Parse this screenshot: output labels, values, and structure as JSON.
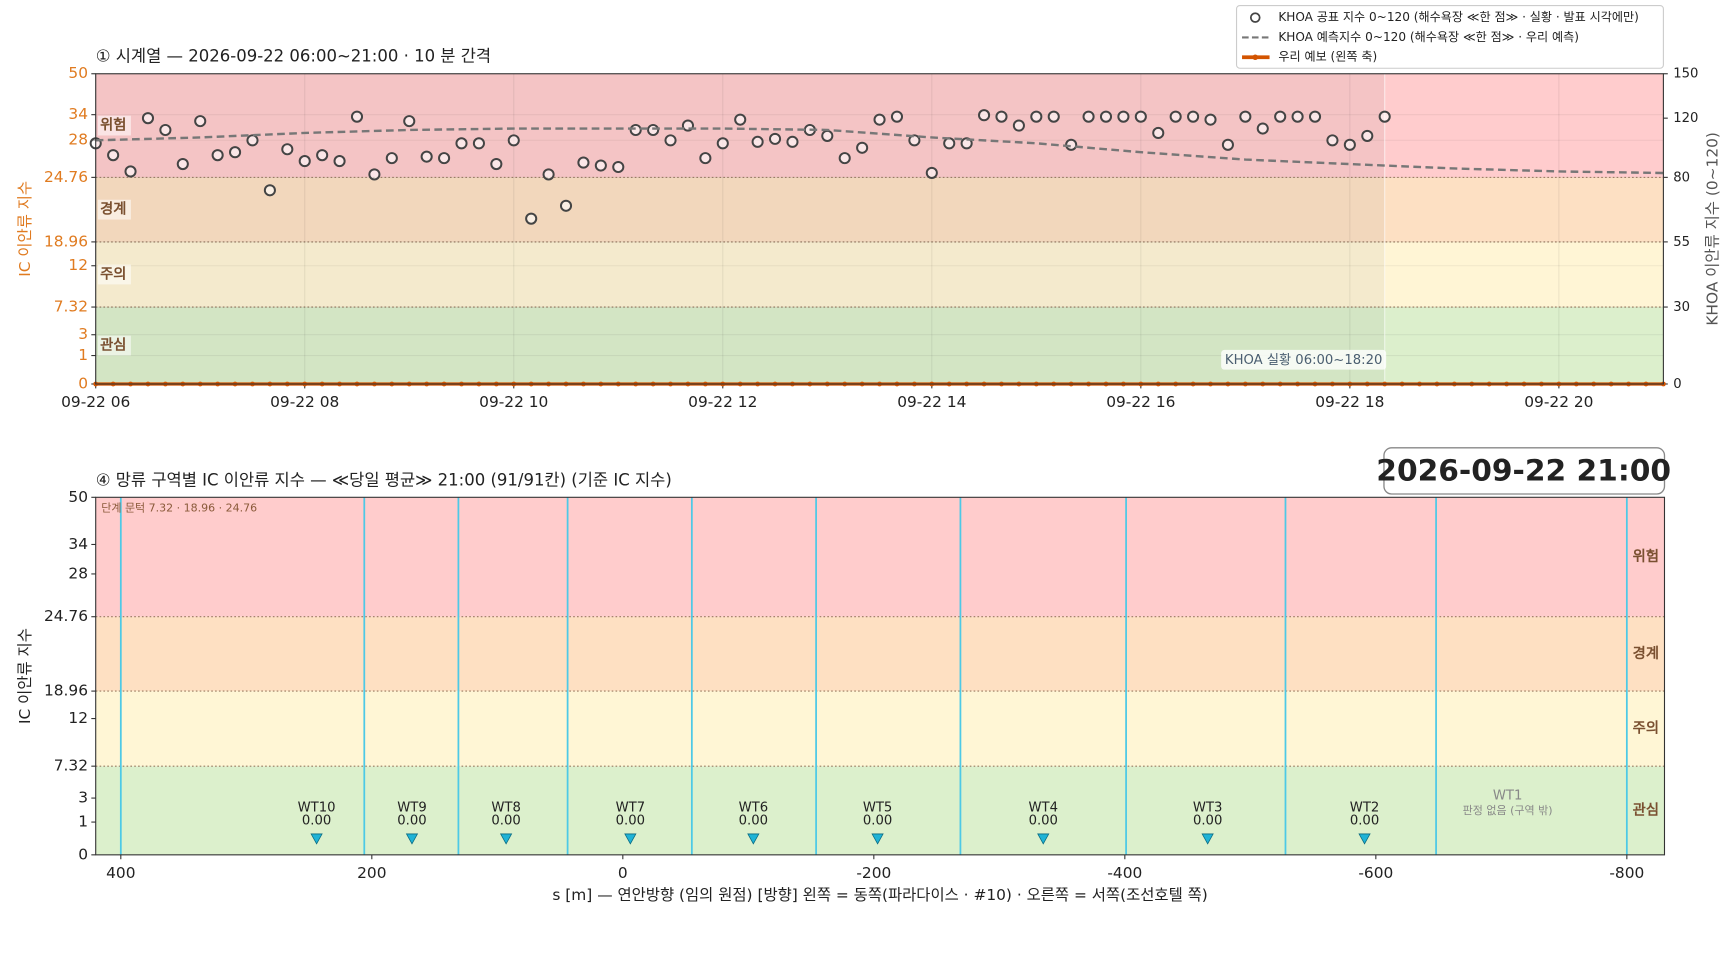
{
  "timestamp": "2026-09-22  21:00",
  "chart_data": [
    {
      "type": "timeseries",
      "title": "① 시계열 — 2026-09-22 06:00~21:00 · 10 분 간격",
      "ylabel": "IC 이안류 지수",
      "y2label": "KHOA 이안류 지수 (0~120)",
      "annotation": "KHOA 실황 06:00~18:20",
      "xlim": [
        6,
        21
      ],
      "xticks": [
        {
          "value": 6,
          "label": "09-22 06"
        },
        {
          "value": 8,
          "label": "09-22 08"
        },
        {
          "value": 10,
          "label": "09-22 10"
        },
        {
          "value": 12,
          "label": "09-22 12"
        },
        {
          "value": 14,
          "label": "09-22 14"
        },
        {
          "value": 16,
          "label": "09-22 16"
        },
        {
          "value": 18,
          "label": "09-22 18"
        },
        {
          "value": 20,
          "label": "09-22 20"
        }
      ],
      "ylim": [
        0,
        50
      ],
      "yticks": [
        0,
        1,
        3,
        7.32,
        12,
        18.96,
        24.76,
        28,
        34,
        50
      ],
      "y2lim": [
        0,
        150
      ],
      "y2ticks": [
        0,
        30,
        55,
        80,
        120,
        150
      ],
      "thresholds": [
        7.32,
        18.96,
        24.76
      ],
      "levels": [
        {
          "name": "관심",
          "color": "#dcefcc"
        },
        {
          "name": "주의",
          "color": "#fff5d5"
        },
        {
          "name": "경계",
          "color": "#fde0c3"
        },
        {
          "name": "위험",
          "color": "#ffcccd"
        }
      ],
      "grid": true,
      "legend": "upper right",
      "series": [
        {
          "name": "KHOA 공표 지수 0~120 (해수욕장 ≪한 점≫ · 실황 · 발표 시각에만)",
          "color": "#444444",
          "style": "points",
          "axis": "y2",
          "x": [
            6,
            6.1667,
            6.3333,
            6.5,
            6.6667,
            6.8333,
            7,
            7.1667,
            7.3333,
            7.5,
            7.6667,
            7.8333,
            8,
            8.1667,
            8.3333,
            8.5,
            8.6667,
            8.8333,
            9,
            9.1667,
            9.3333,
            9.5,
            9.6667,
            9.8333,
            10,
            10.1667,
            10.3333,
            10.5,
            10.6667,
            10.8333,
            11,
            11.1667,
            11.3333,
            11.5,
            11.6667,
            11.8333,
            12,
            12.1667,
            12.3333,
            12.5,
            12.6667,
            12.8333,
            13,
            13.1667,
            13.3333,
            13.5,
            13.6667,
            13.8333,
            14,
            14.1667,
            14.3333,
            14.5,
            14.6667,
            14.8333,
            15,
            15.1667,
            15.3333,
            15.5,
            15.6667,
            15.8333,
            16,
            16.1667,
            16.3333,
            16.5,
            16.6667,
            16.8333,
            17,
            17.1667,
            17.3333,
            17.5,
            17.6667,
            17.8333,
            18,
            18.1667,
            18.3333
          ],
          "values": [
            103,
            95,
            84,
            120,
            112,
            89,
            118,
            95,
            97,
            105,
            75,
            99,
            91,
            95,
            91,
            121,
            82,
            93,
            118,
            94,
            93,
            103,
            103,
            89,
            105,
            64,
            82,
            69,
            90,
            88,
            87,
            112,
            112,
            105,
            115,
            93,
            103,
            119,
            104,
            106,
            104,
            112,
            108,
            93,
            100,
            119,
            121,
            105,
            83,
            103,
            103,
            122,
            121,
            115,
            121,
            121,
            102,
            121,
            121,
            121,
            121,
            110,
            121,
            121,
            119,
            102,
            121,
            113,
            121,
            121,
            121,
            105,
            102,
            108,
            121
          ]
        },
        {
          "name": "KHOA 예측지수 0~120 (해수욕장 ≪한 점≫ · 우리 예측)",
          "color": "#777777",
          "style": "dashed",
          "axis": "y2",
          "x": [
            6,
            7,
            8,
            9,
            10,
            11,
            12,
            13,
            14,
            15,
            16,
            17,
            18,
            19,
            20,
            21
          ],
          "values": [
            105,
            107,
            110,
            112,
            113,
            113,
            113,
            112,
            107,
            103,
            97,
            92,
            89,
            86,
            84,
            83
          ]
        },
        {
          "name": "우리 예보 (왼쪽 축)",
          "color": "#d35400",
          "style": "line",
          "x": [
            6,
            6.1667,
            6.3333,
            6.5,
            6.6667,
            6.8333,
            7,
            7.1667,
            7.3333,
            7.5,
            7.6667,
            7.8333,
            8,
            8.1667,
            8.3333,
            8.5,
            8.6667,
            8.8333,
            9,
            9.1667,
            9.3333,
            9.5,
            9.6667,
            9.8333,
            10,
            10.1667,
            10.3333,
            10.5,
            10.6667,
            10.8333,
            11,
            11.1667,
            11.3333,
            11.5,
            11.6667,
            11.8333,
            12,
            12.1667,
            12.3333,
            12.5,
            12.6667,
            12.8333,
            13,
            13.1667,
            13.3333,
            13.5,
            13.6667,
            13.8333,
            14,
            14.1667,
            14.3333,
            14.5,
            14.6667,
            14.8333,
            15,
            15.1667,
            15.3333,
            15.5,
            15.6667,
            15.8333,
            16,
            16.1667,
            16.3333,
            16.5,
            16.6667,
            16.8333,
            17,
            17.1667,
            17.3333,
            17.5,
            17.6667,
            17.8333,
            18,
            18.1667,
            18.3333,
            18.5,
            18.6667,
            18.8333,
            19,
            19.1667,
            19.3333,
            19.5,
            19.6667,
            19.8333,
            20,
            20.1667,
            20.3333,
            20.5,
            20.6667,
            20.8333,
            21
          ],
          "values": [
            0,
            0,
            0,
            0,
            0,
            0,
            0,
            0,
            0,
            0,
            0,
            0,
            0,
            0,
            0,
            0,
            0,
            0,
            0,
            0,
            0,
            0,
            0,
            0,
            0,
            0,
            0,
            0,
            0,
            0,
            0,
            0,
            0,
            0,
            0,
            0,
            0,
            0,
            0,
            0,
            0,
            0,
            0,
            0,
            0,
            0,
            0,
            0,
            0,
            0,
            0,
            0,
            0,
            0,
            0,
            0,
            0,
            0,
            0,
            0,
            0,
            0,
            0,
            0,
            0,
            0,
            0,
            0,
            0,
            0,
            0,
            0,
            0,
            0,
            0,
            0,
            0,
            0,
            0,
            0,
            0,
            0,
            0,
            0,
            0,
            0,
            0,
            0,
            0,
            0,
            0
          ]
        }
      ]
    },
    {
      "type": "zones",
      "title": "④ 망류 구역별 IC 이안류 지수 — ≪당일 평균≫ 21:00  (91/91칸)   (기준 IC 지수)",
      "xlabel": "s [m] — 연안방향 (임의 원점)     [방향] 왼쪽 = 동쪽(파라다이스 · #10) · 오른쪽 = 서쪽(조선호텔 쪽)",
      "ylabel": "IC 이안류 지수",
      "note": "단계 문턱 7.32 · 18.96 · 24.76",
      "xlim": [
        420,
        -830
      ],
      "xticks": [
        400,
        200,
        0,
        -200,
        -400,
        -600,
        -800
      ],
      "ylim": [
        0,
        50
      ],
      "yticks": [
        0,
        1,
        3,
        7.32,
        12,
        18.96,
        24.76,
        28,
        34,
        50
      ],
      "thresholds": [
        7.32,
        18.96,
        24.76
      ],
      "levels": [
        {
          "name": "관심",
          "color": "#dcf0cc"
        },
        {
          "name": "주의",
          "color": "#fff6d5"
        },
        {
          "name": "경계",
          "color": "#fee0c2"
        },
        {
          "name": "위험",
          "color": "#ffcccc"
        }
      ],
      "boundaries": [
        400,
        206,
        131,
        44,
        -55,
        -154,
        -269,
        -401,
        -528,
        -648,
        -800
      ],
      "boundary_color": "#4dc9e6",
      "marker_color": "#1fb3d6",
      "categories": [
        "WT10",
        "WT9",
        "WT8",
        "WT7",
        "WT6",
        "WT5",
        "WT4",
        "WT3",
        "WT2",
        "WT1"
      ],
      "x": [
        244,
        168,
        93,
        -6,
        -104,
        -203,
        -335,
        -466,
        -591,
        -705
      ],
      "values": [
        0,
        0,
        0,
        0,
        0,
        0,
        0,
        0,
        0,
        null
      ],
      "value_labels": [
        "0.00",
        "0.00",
        "0.00",
        "0.00",
        "0.00",
        "0.00",
        "0.00",
        "0.00",
        "0.00",
        "판정 없음 (구역 밖)"
      ]
    }
  ]
}
